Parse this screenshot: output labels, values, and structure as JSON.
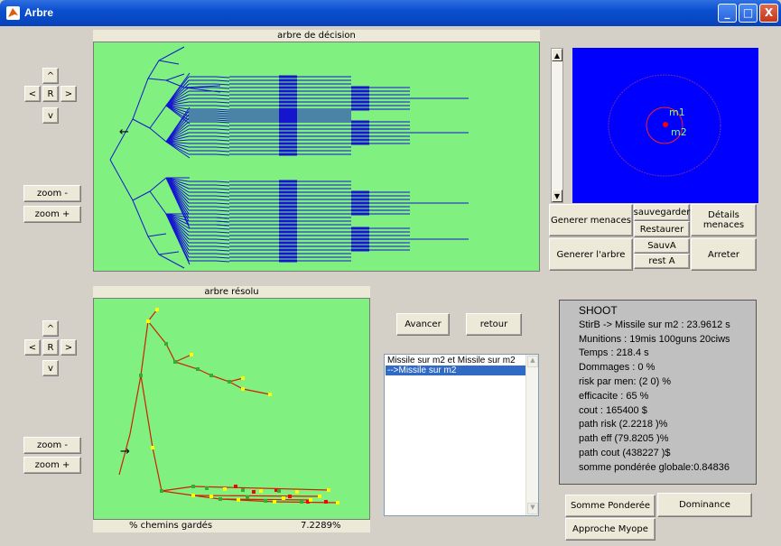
{
  "window": {
    "title": "Arbre",
    "minimize": "_",
    "maximize": "□",
    "close": "X"
  },
  "top_nav": {
    "up": "^",
    "left": "<",
    "reset": "R",
    "right": ">",
    "down": "v",
    "zoom_out": "zoom -",
    "zoom_in": "zoom +"
  },
  "bottom_nav": {
    "up": "^",
    "left": "<",
    "reset": "R",
    "right": ">",
    "down": "v",
    "zoom_out": "zoom -",
    "zoom_in": "zoom +"
  },
  "decision_tree": {
    "title": "arbre de décision",
    "marker": "←"
  },
  "resolved_tree": {
    "title": "arbre résolu",
    "marker": "→"
  },
  "radar": {
    "label_m1": "m1",
    "label_m2": "m2"
  },
  "scroll": {
    "up": "▲",
    "down": "▼"
  },
  "controls": {
    "generer_menaces": "Generer menaces",
    "sauvegarder": "sauvegarder",
    "restaurer": "Restaurer",
    "details_menaces": "Détails menaces",
    "generer_arbre": "Generer l'arbre",
    "sauv_a": "SauvA",
    "rest_a": "rest A",
    "arreter": "Arreter"
  },
  "nav_actions": {
    "avancer": "Avancer",
    "retour": "retour"
  },
  "missile_list": {
    "items": [
      "Missile sur m2  et Missile sur m2",
      "-->Missile sur m2"
    ],
    "selected_index": 1
  },
  "info_panel": {
    "lines": [
      "SHOOT",
      "StirB -> Missile sur m2 : 23.9612 s",
      "Munitions : 19mis 100guns 20ciws",
      "Temps     : 218.4 s",
      "Dommages   : 0 %",
      "risk par men: (2  0) %",
      "efficacite : 65 %",
      "cout       : 165400 $",
      "path risk  (2.2218 )%",
      "path eff   (79.8205 )%",
      "path cout  (438227 )$",
      "somme pondérée globale:0.84836"
    ]
  },
  "status": {
    "chemins_label": "% chemins gardés",
    "chemins_value": "7.2289%"
  },
  "methods": {
    "somme_ponderee": "Somme Ponderée",
    "dominance": "Dominance",
    "approche_myope": "Approche Myope"
  }
}
